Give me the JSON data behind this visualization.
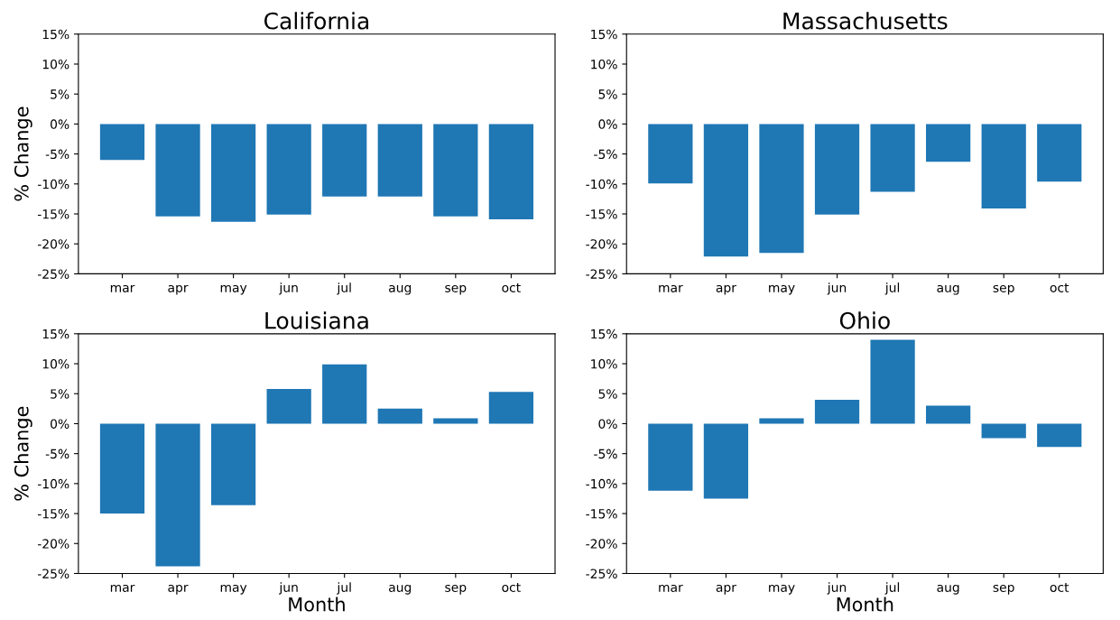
{
  "chart_data": [
    {
      "type": "bar",
      "title": "California",
      "ylabel": "% Change",
      "categories": [
        "mar",
        "apr",
        "may",
        "jun",
        "jul",
        "aug",
        "sep",
        "oct"
      ],
      "color": "#1f77b4",
      "values": [
        -6.0,
        -15.4,
        -16.3,
        -15.1,
        -12.1,
        -12.1,
        -15.4,
        -15.9
      ],
      "ylim": [
        -25,
        15
      ],
      "yticks": [
        {
          "value": -25,
          "label": "-25%"
        },
        {
          "value": -20,
          "label": "-20%"
        },
        {
          "value": -15,
          "label": "-15%"
        },
        {
          "value": -10,
          "label": "-10%"
        },
        {
          "value": -5,
          "label": "-5%"
        },
        {
          "value": 0,
          "label": "0%"
        },
        {
          "value": 5,
          "label": "5%"
        },
        {
          "value": 10,
          "label": "10%"
        },
        {
          "value": 15,
          "label": "15%"
        }
      ]
    },
    {
      "type": "bar",
      "title": "Massachusetts",
      "categories": [
        "mar",
        "apr",
        "may",
        "jun",
        "jul",
        "aug",
        "sep",
        "oct"
      ],
      "color": "#1f77b4",
      "values": [
        -9.9,
        -22.1,
        -21.5,
        -15.1,
        -11.3,
        -6.3,
        -14.1,
        -9.6
      ],
      "ylim": [
        -25,
        15
      ],
      "yticks": [
        {
          "value": -25,
          "label": "-25%"
        },
        {
          "value": -20,
          "label": "-20%"
        },
        {
          "value": -15,
          "label": "-15%"
        },
        {
          "value": -10,
          "label": "-10%"
        },
        {
          "value": -5,
          "label": "-5%"
        },
        {
          "value": 0,
          "label": "0%"
        },
        {
          "value": 5,
          "label": "5%"
        },
        {
          "value": 10,
          "label": "10%"
        },
        {
          "value": 15,
          "label": "15%"
        }
      ]
    },
    {
      "type": "bar",
      "title": "Louisiana",
      "ylabel": "% Change",
      "xlabel": "Month",
      "categories": [
        "mar",
        "apr",
        "may",
        "jun",
        "jul",
        "aug",
        "sep",
        "oct"
      ],
      "color": "#1f77b4",
      "values": [
        -15.0,
        -23.8,
        -13.6,
        5.8,
        9.9,
        2.5,
        0.9,
        5.3
      ],
      "ylim": [
        -25,
        15
      ],
      "yticks": [
        {
          "value": -25,
          "label": "-25%"
        },
        {
          "value": -20,
          "label": "-20%"
        },
        {
          "value": -15,
          "label": "-15%"
        },
        {
          "value": -10,
          "label": "-10%"
        },
        {
          "value": -5,
          "label": "-5%"
        },
        {
          "value": 0,
          "label": "0%"
        },
        {
          "value": 5,
          "label": "5%"
        },
        {
          "value": 10,
          "label": "10%"
        },
        {
          "value": 15,
          "label": "15%"
        }
      ]
    },
    {
      "type": "bar",
      "title": "Ohio",
      "xlabel": "Month",
      "categories": [
        "mar",
        "apr",
        "may",
        "jun",
        "jul",
        "aug",
        "sep",
        "oct"
      ],
      "color": "#1f77b4",
      "values": [
        -11.2,
        -12.5,
        0.9,
        4.0,
        14.0,
        3.0,
        -2.4,
        -3.9
      ],
      "ylim": [
        -25,
        15
      ],
      "yticks": [
        {
          "value": -25,
          "label": "-25%"
        },
        {
          "value": -20,
          "label": "-20%"
        },
        {
          "value": -15,
          "label": "-15%"
        },
        {
          "value": -10,
          "label": "-10%"
        },
        {
          "value": -5,
          "label": "-5%"
        },
        {
          "value": 0,
          "label": "0%"
        },
        {
          "value": 5,
          "label": "5%"
        },
        {
          "value": 10,
          "label": "10%"
        },
        {
          "value": 15,
          "label": "15%"
        }
      ]
    }
  ]
}
